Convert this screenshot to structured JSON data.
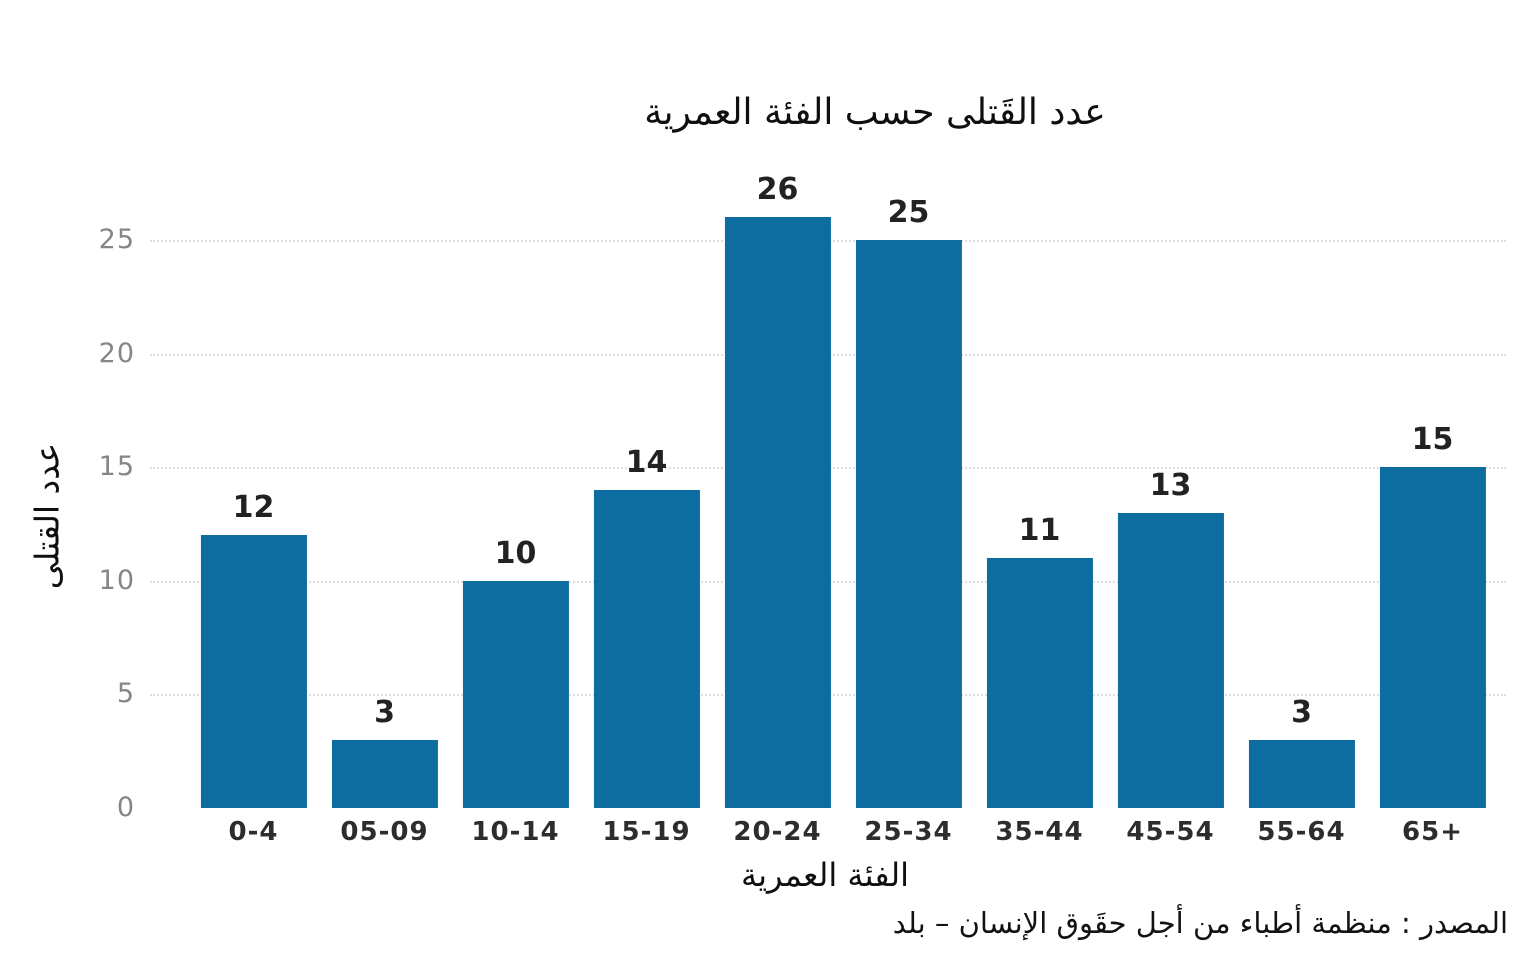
{
  "chart_data": {
    "type": "bar",
    "title": "عدد القَتلى حسب الفئة العمرية",
    "xlabel": "الفئة العمرية",
    "ylabel": "عدد القتلى",
    "source": "المصدر : منظمة أطباء من أجل حقَوق الإنسان – بلد",
    "categories": [
      "0-4",
      "05-09",
      "10-14",
      "15-19",
      "20-24",
      "25-34",
      "35-44",
      "45-54",
      "55-64",
      "65+"
    ],
    "values": [
      12,
      3,
      10,
      14,
      26,
      25,
      11,
      13,
      3,
      15
    ],
    "yticks": [
      0,
      5,
      10,
      15,
      20,
      25
    ],
    "ylim": [
      0,
      26
    ],
    "grid": "horizontal dotted at yticks above zero",
    "legend": "none",
    "bar_color": "#0d6ca0",
    "value_label_color": "#222222",
    "ytick_color": "#868686",
    "xtick_color": "#2d2d2d",
    "gridline_color": "#dedede",
    "background_color": "#ffffff"
  }
}
